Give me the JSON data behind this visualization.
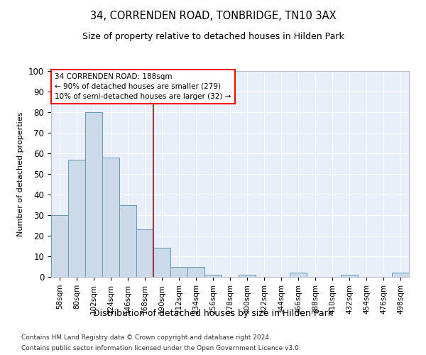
{
  "title1": "34, CORRENDEN ROAD, TONBRIDGE, TN10 3AX",
  "title2": "Size of property relative to detached houses in Hilden Park",
  "xlabel": "Distribution of detached houses by size in Hilden Park",
  "ylabel": "Number of detached properties",
  "categories": [
    "58sqm",
    "80sqm",
    "102sqm",
    "124sqm",
    "146sqm",
    "168sqm",
    "190sqm",
    "212sqm",
    "234sqm",
    "256sqm",
    "278sqm",
    "300sqm",
    "322sqm",
    "344sqm",
    "366sqm",
    "388sqm",
    "410sqm",
    "432sqm",
    "454sqm",
    "476sqm",
    "498sqm"
  ],
  "values": [
    30,
    57,
    80,
    58,
    35,
    23,
    14,
    5,
    5,
    1,
    0,
    1,
    0,
    0,
    2,
    0,
    0,
    1,
    0,
    0,
    2
  ],
  "bar_color": "#ccd9e8",
  "bar_edge_color": "#6699bb",
  "redline_index": 6,
  "redline_label": "34 CORRENDEN ROAD: 188sqm",
  "annotation_line1": "← 90% of detached houses are smaller (279)",
  "annotation_line2": "10% of semi-detached houses are larger (32) →",
  "ylim": [
    0,
    100
  ],
  "yticks": [
    0,
    10,
    20,
    30,
    40,
    50,
    60,
    70,
    80,
    90,
    100
  ],
  "bg_color": "#e8eff8",
  "grid_color": "#ffffff",
  "footer1": "Contains HM Land Registry data © Crown copyright and database right 2024.",
  "footer2": "Contains public sector information licensed under the Open Government Licence v3.0."
}
